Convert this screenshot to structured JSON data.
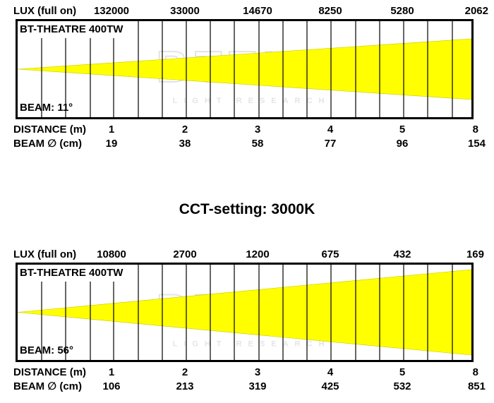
{
  "colors": {
    "beam": "#ffff00",
    "beam_edge": "#c8c800",
    "grid": "#000000",
    "watermark": "#e4e4e4"
  },
  "title_center": "CCT-setting: 3000K",
  "watermark": {
    "logo": "BTTLS",
    "tagline": "LIGHT RESEARCH"
  },
  "charts": [
    {
      "lux_label": "LUX (full on)",
      "lux_values": [
        "132000",
        "33000",
        "14670",
        "8250",
        "5280",
        "2062"
      ],
      "model": "BT-THEATRE 400TW",
      "beam_angle_label": "BEAM: 11°",
      "beam_angle_deg": 11,
      "distance_label": "DISTANCE (m)",
      "distances": [
        "1",
        "2",
        "3",
        "4",
        "5",
        "8"
      ],
      "diameter_label": "BEAM ∅ (cm)",
      "diameters": [
        "19",
        "38",
        "58",
        "77",
        "96",
        "154"
      ]
    },
    {
      "lux_label": "LUX (full on)",
      "lux_values": [
        "10800",
        "2700",
        "1200",
        "675",
        "432",
        "169"
      ],
      "model": "BT-THEATRE 400TW",
      "beam_angle_label": "BEAM: 56°",
      "beam_angle_deg": 56,
      "distance_label": "DISTANCE (m)",
      "distances": [
        "1",
        "2",
        "3",
        "4",
        "5",
        "8"
      ],
      "diameter_label": "BEAM ∅ (cm)",
      "diameters": [
        "106",
        "213",
        "319",
        "425",
        "532",
        "851"
      ]
    }
  ]
}
